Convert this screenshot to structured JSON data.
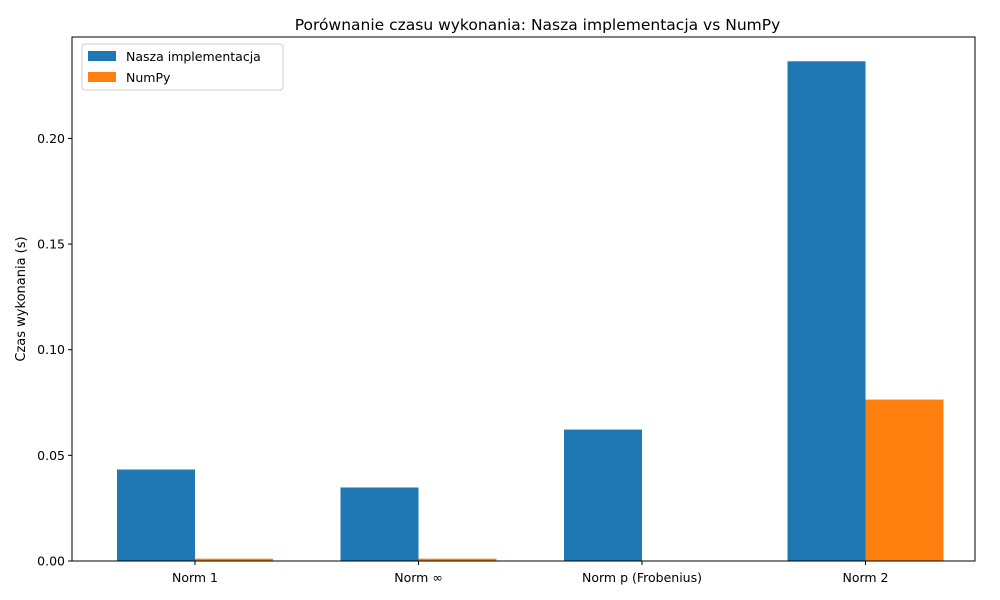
{
  "chart_data": {
    "type": "bar",
    "title": "Porównanie czasu wykonania: Nasza implementacja vs NumPy",
    "xlabel": "",
    "ylabel": "Czas wykonania (s)",
    "categories": [
      "Norm 1",
      "Norm ∞",
      "Norm p (Frobenius)",
      "Norm 2"
    ],
    "series": [
      {
        "name": "Nasza implementacja",
        "color": "#1f77b4",
        "values": [
          0.0433,
          0.0348,
          0.0622,
          0.2365
        ]
      },
      {
        "name": "NumPy",
        "color": "#ff7f0e",
        "values": [
          0.0011,
          0.0011,
          0.0001,
          0.0764
        ]
      }
    ],
    "ylim": [
      0,
      0.248
    ],
    "yticks": [
      0.0,
      0.05,
      0.1,
      0.15,
      0.2
    ],
    "ytick_labels": [
      "0.00",
      "0.05",
      "0.10",
      "0.15",
      "0.20"
    ],
    "legend": "top-left",
    "grid": false
  }
}
